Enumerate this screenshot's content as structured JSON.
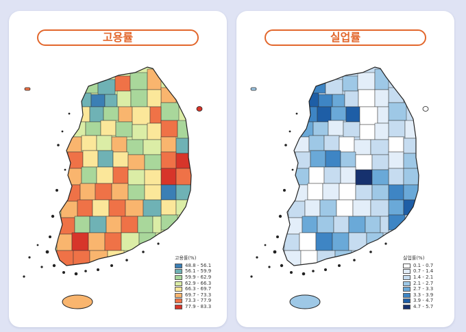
{
  "employment": {
    "title": "고용률",
    "legend_title": "고용률(%)",
    "classes": [
      {
        "label": "48.8 - 56.1",
        "color": "#3b7fb5"
      },
      {
        "label": "56.1 - 59.9",
        "color": "#6fb2b5"
      },
      {
        "label": "59.9 - 62.9",
        "color": "#a9d79b"
      },
      {
        "label": "62.9 - 66.3",
        "color": "#dbeda6"
      },
      {
        "label": "66.3 - 69.7",
        "color": "#fbe79a"
      },
      {
        "label": "69.7 - 73.3",
        "color": "#f9b56e"
      },
      {
        "label": "73.3 - 77.9",
        "color": "#ef7247"
      },
      {
        "label": "77.9 - 83.3",
        "color": "#d7352a"
      }
    ]
  },
  "unemployment": {
    "title": "실업률",
    "legend_title": "실업률(%)",
    "classes": [
      {
        "label": "0.1 - 0.7",
        "color": "#ffffff"
      },
      {
        "label": "0.7 - 1.4",
        "color": "#e3eef9"
      },
      {
        "label": "1.4 - 2.1",
        "color": "#c6dcf0"
      },
      {
        "label": "2.1 - 2.7",
        "color": "#9ec8e6"
      },
      {
        "label": "2.7 - 3.3",
        "color": "#6aa9d8"
      },
      {
        "label": "3.3 - 3.9",
        "color": "#3e85c4"
      },
      {
        "label": "3.9 - 4.7",
        "color": "#1e5ea6"
      },
      {
        "label": "4.7 - 5.7",
        "color": "#16316e"
      }
    ]
  }
}
